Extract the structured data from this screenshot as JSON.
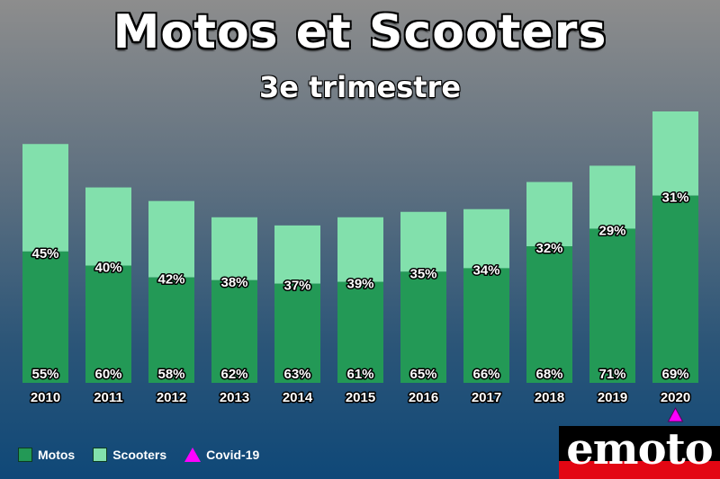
{
  "header": {
    "title": "Motos et Scooters",
    "subtitle": "3e trimestre"
  },
  "chart_data": {
    "type": "bar",
    "stacked": true,
    "title": "Motos et Scooters",
    "subtitle": "3e trimestre",
    "categories": [
      "2010",
      "2011",
      "2012",
      "2013",
      "2014",
      "2015",
      "2016",
      "2017",
      "2018",
      "2019",
      "2020"
    ],
    "series": [
      {
        "name": "Motos",
        "color": "#239956",
        "values": [
          55,
          60,
          58,
          62,
          63,
          61,
          65,
          66,
          68,
          71,
          69
        ],
        "labels": [
          "55%",
          "60%",
          "58%",
          "62%",
          "63%",
          "61%",
          "65%",
          "66%",
          "68%",
          "71%",
          "69%"
        ]
      },
      {
        "name": "Scooters",
        "color": "#82e0ac",
        "values": [
          45,
          40,
          42,
          38,
          37,
          39,
          35,
          34,
          32,
          29,
          31
        ],
        "labels": [
          "45%",
          "40%",
          "42%",
          "38%",
          "37%",
          "39%",
          "35%",
          "34%",
          "32%",
          "29%",
          "31%"
        ]
      }
    ],
    "relative_totals": [
      88,
      72,
      67,
      61,
      58,
      61,
      63,
      64,
      74,
      80,
      100
    ],
    "annotation": {
      "name": "Covid-19",
      "category": "2020",
      "marker": "triangle",
      "color": "#ff00ff"
    },
    "legend_position": "bottom-left",
    "grid": false
  },
  "legend": {
    "items": [
      {
        "label": "Motos",
        "color": "#239956"
      },
      {
        "label": "Scooters",
        "color": "#82e0ac"
      },
      {
        "label": "Covid-19",
        "color": "#ff00ff"
      }
    ]
  },
  "logo": {
    "text": "emoto"
  }
}
